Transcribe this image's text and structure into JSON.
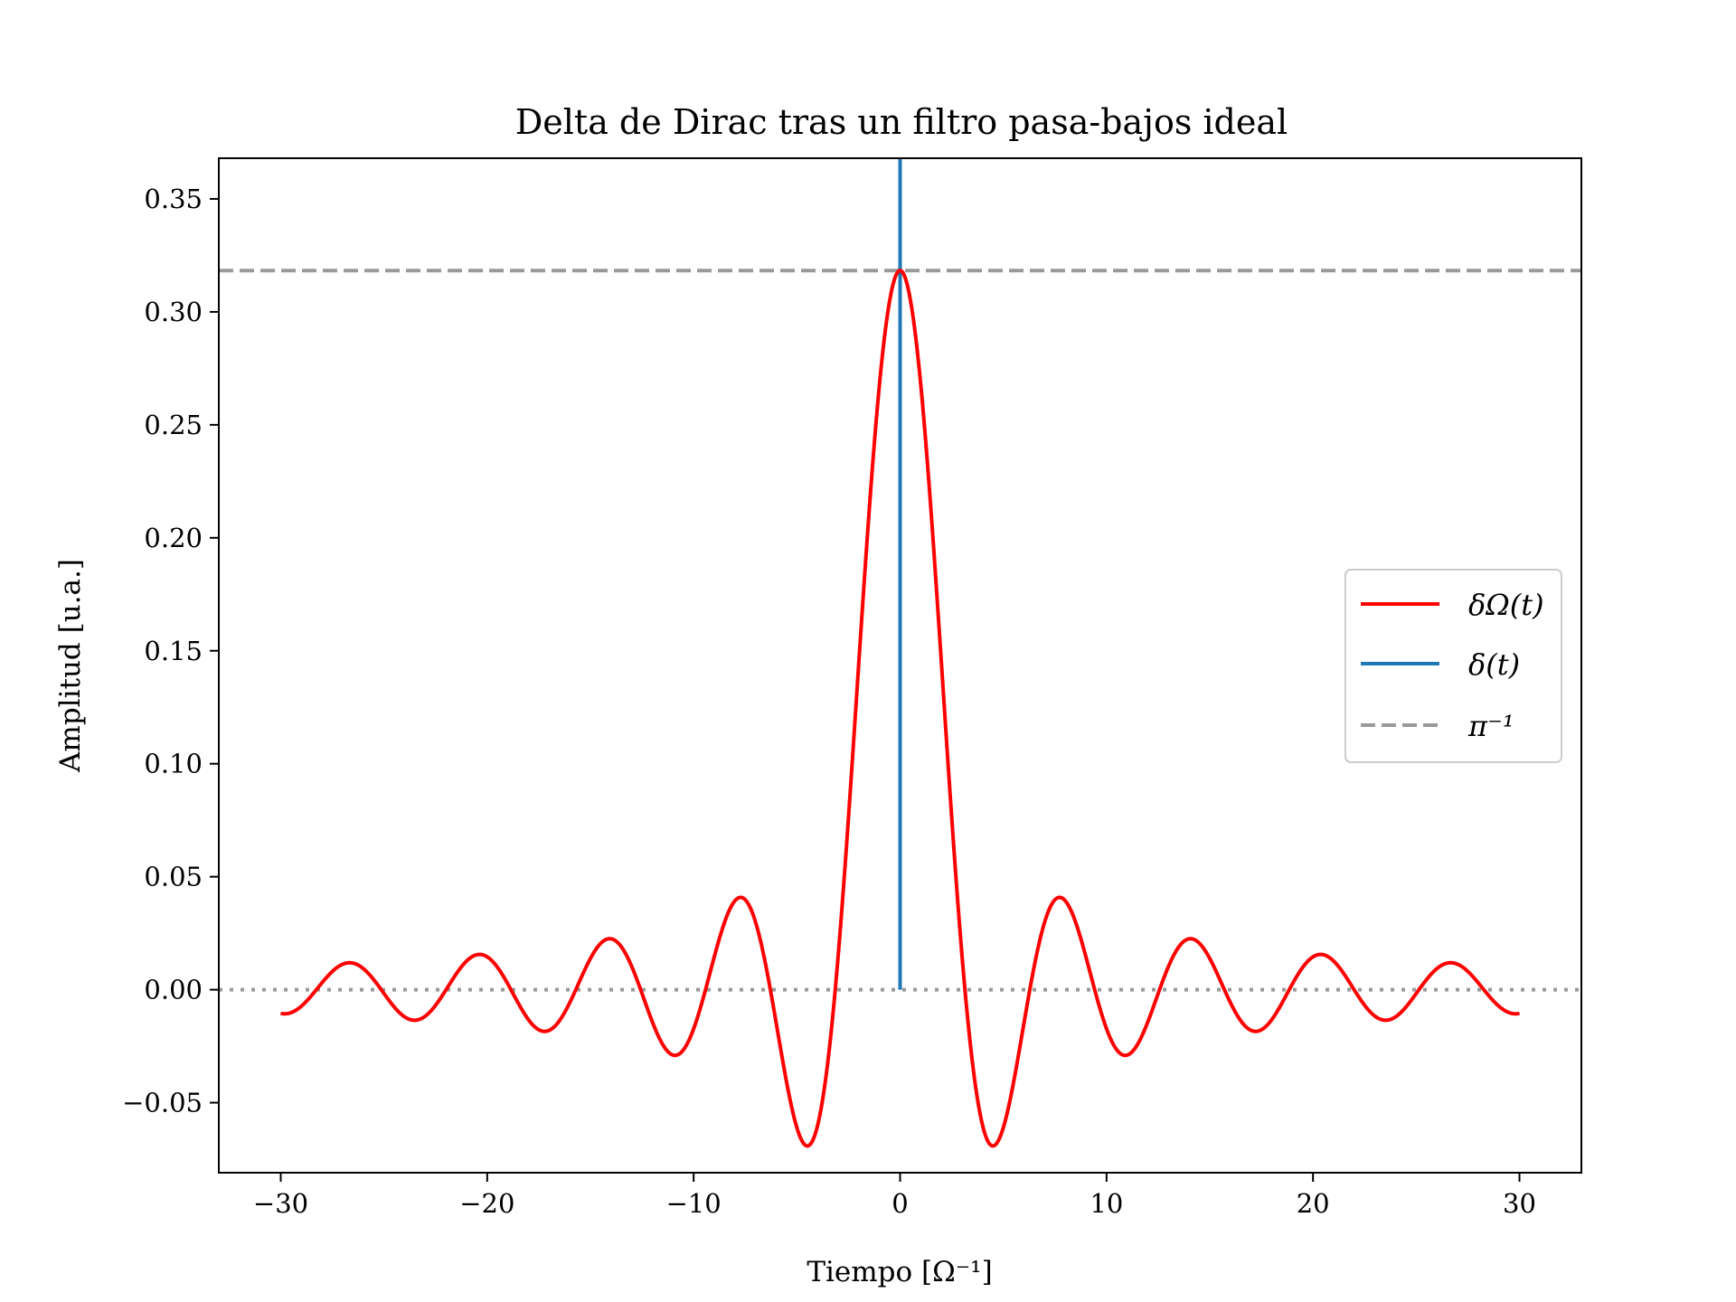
{
  "chart_data": {
    "type": "line",
    "title": "Delta de Dirac tras un filtro pasa-bajos ideal",
    "xlabel": "Tiempo [Ω⁻¹]",
    "ylabel": "Amplitud [u.a.]",
    "xlim": [
      -33,
      33
    ],
    "ylim": [
      -0.081,
      0.368
    ],
    "xticks": [
      -30,
      -20,
      -10,
      0,
      10,
      20,
      30
    ],
    "xtick_labels": [
      "−30",
      "−20",
      "−10",
      "0",
      "10",
      "20",
      "30"
    ],
    "yticks": [
      -0.05,
      0.0,
      0.05,
      0.1,
      0.15,
      0.2,
      0.25,
      0.3,
      0.35
    ],
    "ytick_labels": [
      "−0.05",
      "0.00",
      "0.05",
      "0.10",
      "0.15",
      "0.20",
      "0.25",
      "0.30",
      "0.35"
    ],
    "grid": false,
    "legend_position": "center-right",
    "series": [
      {
        "name": "δΩ(t)",
        "color": "#ff0000",
        "style": "solid",
        "function": "sin(t)/(π·t)",
        "x_range": [
          -30,
          30
        ],
        "peak": {
          "x": 0,
          "y": 0.318
        },
        "extrema": [
          {
            "x": -26.7,
            "y": 0.012
          },
          {
            "x": -23.6,
            "y": -0.013
          },
          {
            "x": -20.4,
            "y": 0.016
          },
          {
            "x": -17.2,
            "y": -0.018
          },
          {
            "x": -14.1,
            "y": 0.023
          },
          {
            "x": -10.9,
            "y": -0.029
          },
          {
            "x": -7.7,
            "y": 0.041
          },
          {
            "x": -4.5,
            "y": -0.069
          },
          {
            "x": 4.5,
            "y": -0.069
          },
          {
            "x": 7.7,
            "y": 0.041
          },
          {
            "x": 10.9,
            "y": -0.029
          },
          {
            "x": 14.1,
            "y": 0.023
          },
          {
            "x": 17.2,
            "y": -0.018
          },
          {
            "x": 20.4,
            "y": 0.016
          },
          {
            "x": 23.6,
            "y": -0.013
          },
          {
            "x": 26.7,
            "y": 0.012
          }
        ]
      },
      {
        "name": "δ(t)",
        "color": "#1f77b4",
        "style": "solid",
        "x": [
          0,
          0
        ],
        "y": [
          0.0,
          0.368
        ]
      },
      {
        "name": "π⁻¹",
        "color": "#999999",
        "style": "dashed",
        "y_constant": 0.3183
      },
      {
        "color": "#999999",
        "style": "dotted",
        "y_constant": 0.0
      }
    ]
  }
}
